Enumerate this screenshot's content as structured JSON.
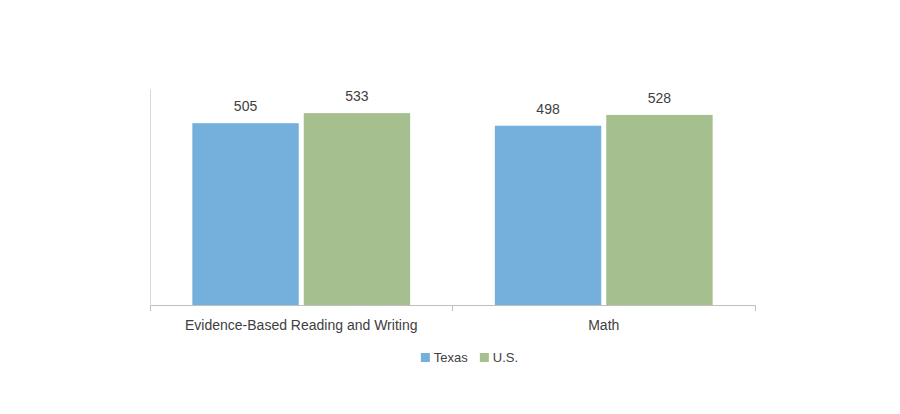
{
  "chart_data": {
    "type": "bar",
    "categories": [
      "Evidence-Based Reading and Writing",
      "Math"
    ],
    "series": [
      {
        "name": "Texas",
        "color": "#75b0dd",
        "values": [
          505,
          498
        ]
      },
      {
        "name": "U.S.",
        "color": "#a6bf8f",
        "values": [
          533,
          528
        ]
      }
    ],
    "ylim": [
      0,
      600
    ],
    "yticks": [],
    "tick_labels": "x",
    "data_labels": true,
    "legend": "bottom",
    "grid": false
  }
}
